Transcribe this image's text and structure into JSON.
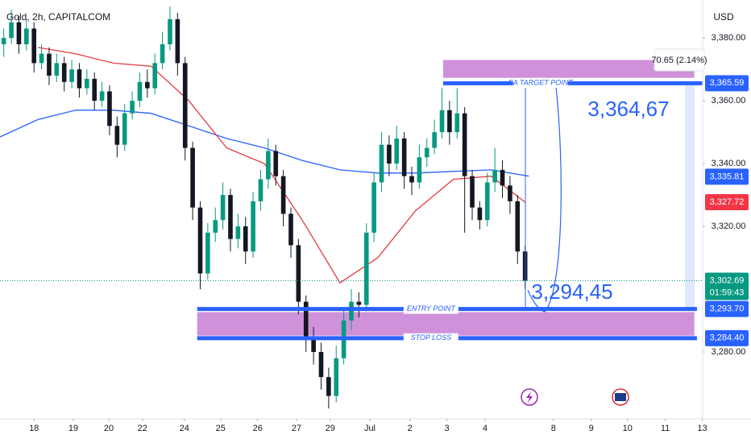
{
  "chart_data": {
    "type": "candlestick",
    "title": "Gold, 2h, CAPITALCOM",
    "currency": "USD",
    "up_color": "#089981",
    "down_color": "#131722",
    "xlim": [
      0,
      186
    ],
    "ylim": [
      3258.7,
      3392.1
    ],
    "xticks": [
      {
        "value": 9,
        "label": "18"
      },
      {
        "value": 19.4,
        "label": "19"
      },
      {
        "value": 28.8,
        "label": "20"
      },
      {
        "value": 37.7,
        "label": "22"
      },
      {
        "value": 48.8,
        "label": "24"
      },
      {
        "value": 58.4,
        "label": "25"
      },
      {
        "value": 68.2,
        "label": "26"
      },
      {
        "value": 78.5,
        "label": "27"
      },
      {
        "value": 87.4,
        "label": "29"
      },
      {
        "value": 97.9,
        "label": "Jul"
      },
      {
        "value": 108.5,
        "label": "2"
      },
      {
        "value": 118.3,
        "label": "3"
      },
      {
        "value": 128.4,
        "label": "4"
      },
      {
        "value": 146.5,
        "label": "8"
      },
      {
        "value": 156.5,
        "label": "9"
      },
      {
        "value": 166.1,
        "label": "10"
      },
      {
        "value": 176.1,
        "label": "11"
      },
      {
        "value": 185.9,
        "label": "13"
      }
    ],
    "yticks": [
      {
        "value": 3380,
        "label": "3,380.00"
      },
      {
        "value": 3360,
        "label": "3,360.00"
      },
      {
        "value": 3340,
        "label": "3,340.00"
      },
      {
        "value": 3320,
        "label": "3,320.00"
      },
      {
        "value": 3280,
        "label": "3,280.00"
      }
    ],
    "x": [
      1,
      3,
      5,
      7,
      9,
      11,
      13,
      15,
      17,
      19,
      21,
      23,
      25,
      27,
      29,
      31,
      33,
      35,
      37,
      39,
      41,
      43,
      45,
      47,
      49,
      51,
      53,
      55,
      57,
      59,
      61,
      63,
      65,
      67,
      69,
      71,
      73,
      75,
      77,
      79,
      81,
      83,
      85,
      87,
      89,
      91,
      93,
      95,
      97,
      99,
      101,
      103,
      105,
      107,
      109,
      111,
      113,
      115,
      117,
      119,
      121,
      123,
      125,
      127,
      129,
      131,
      133,
      135,
      137,
      139
    ],
    "candles": [
      [
        3378,
        3383,
        3374,
        3380
      ],
      [
        3380,
        3389,
        3378,
        3385
      ],
      [
        3385,
        3387,
        3375,
        3378
      ],
      [
        3378,
        3386,
        3376,
        3383
      ],
      [
        3383,
        3385,
        3369,
        3372
      ],
      [
        3372,
        3378,
        3370,
        3375
      ],
      [
        3375,
        3377,
        3365,
        3368
      ],
      [
        3368,
        3375,
        3366,
        3372
      ],
      [
        3372,
        3374,
        3363,
        3366
      ],
      [
        3366,
        3373,
        3364,
        3370
      ],
      [
        3370,
        3372,
        3361,
        3364
      ],
      [
        3364,
        3370,
        3362,
        3367
      ],
      [
        3367,
        3369,
        3357,
        3360
      ],
      [
        3360,
        3366,
        3358,
        3363
      ],
      [
        3363,
        3365,
        3349,
        3352
      ],
      [
        3352,
        3355,
        3342,
        3346
      ],
      [
        3346,
        3359,
        3344,
        3356
      ],
      [
        3356,
        3363,
        3354,
        3360
      ],
      [
        3360,
        3369,
        3358,
        3366
      ],
      [
        3366,
        3370,
        3361,
        3364
      ],
      [
        3364,
        3375,
        3362,
        3372
      ],
      [
        3372,
        3382,
        3370,
        3378
      ],
      [
        3378,
        3390,
        3376,
        3386
      ],
      [
        3386,
        3388,
        3368,
        3372
      ],
      [
        3372,
        3374,
        3341,
        3345
      ],
      [
        3345,
        3347,
        3322,
        3326
      ],
      [
        3326,
        3328,
        3300,
        3305
      ],
      [
        3305,
        3321,
        3303,
        3318
      ],
      [
        3318,
        3326,
        3315,
        3322
      ],
      [
        3322,
        3334,
        3319,
        3330
      ],
      [
        3330,
        3332,
        3312,
        3316
      ],
      [
        3316,
        3324,
        3313,
        3320
      ],
      [
        3320,
        3323,
        3308,
        3312
      ],
      [
        3312,
        3331,
        3310,
        3328
      ],
      [
        3328,
        3338,
        3325,
        3335
      ],
      [
        3335,
        3348,
        3332,
        3344
      ],
      [
        3344,
        3346,
        3333,
        3336
      ],
      [
        3336,
        3338,
        3320,
        3324
      ],
      [
        3324,
        3326,
        3310,
        3314
      ],
      [
        3314,
        3316,
        3292,
        3296
      ],
      [
        3296,
        3298,
        3280,
        3284
      ],
      [
        3284,
        3288,
        3276,
        3280
      ],
      [
        3280,
        3283,
        3268,
        3272
      ],
      [
        3272,
        3275,
        3262,
        3266
      ],
      [
        3266,
        3282,
        3264,
        3278
      ],
      [
        3278,
        3294,
        3276,
        3290
      ],
      [
        3290,
        3300,
        3287,
        3296
      ],
      [
        3296,
        3299,
        3291,
        3295
      ],
      [
        3295,
        3321,
        3293,
        3318
      ],
      [
        3318,
        3337,
        3315,
        3334
      ],
      [
        3334,
        3350,
        3331,
        3346
      ],
      [
        3346,
        3349,
        3336,
        3340
      ],
      [
        3340,
        3352,
        3338,
        3348
      ],
      [
        3348,
        3350,
        3332,
        3336
      ],
      [
        3336,
        3339,
        3330,
        3334
      ],
      [
        3334,
        3346,
        3332,
        3342
      ],
      [
        3342,
        3348,
        3339,
        3345
      ],
      [
        3345,
        3354,
        3343,
        3350
      ],
      [
        3350,
        3364,
        3348,
        3357
      ],
      [
        3357,
        3360,
        3346,
        3350
      ],
      [
        3350,
        3364,
        3348,
        3356
      ],
      [
        3356,
        3358,
        3318,
        3336
      ],
      [
        3336,
        3338,
        3322,
        3326
      ],
      [
        3326,
        3328,
        3319,
        3322
      ],
      [
        3322,
        3337,
        3320,
        3334
      ],
      [
        3334,
        3345,
        3331,
        3338
      ],
      [
        3338,
        3341,
        3329,
        3333
      ],
      [
        3333,
        3336,
        3324,
        3328
      ],
      [
        3328,
        3330,
        3308,
        3312
      ],
      [
        3312,
        3314,
        3300,
        3302.69
      ]
    ],
    "lines": [
      {
        "color": "#2962ff",
        "x": [
          0,
          10,
          20,
          30,
          40,
          50,
          60,
          70,
          80,
          90,
          100,
          110,
          120,
          130,
          140
        ],
        "values": [
          3348.5,
          3354,
          3357,
          3357,
          3356,
          3352,
          3348,
          3345,
          3341,
          3338,
          3337,
          3337,
          3337.5,
          3338,
          3336
        ]
      },
      {
        "color": "#e5393f",
        "x": [
          10,
          20,
          30,
          40,
          50,
          60,
          70,
          80,
          90,
          100,
          110,
          120,
          130,
          139
        ],
        "values": [
          3377,
          3375,
          3372,
          3371,
          3360,
          3345,
          3340,
          3322,
          3302,
          3310,
          3325,
          3335,
          3336,
          3327.7
        ]
      }
    ],
    "zones": [
      {
        "color": "#c77fd4",
        "top": 3373,
        "bottom": 3367.3,
        "x": [
          117.3,
          183.8
        ]
      },
      {
        "color": "#c77fd4",
        "top": 3292.7,
        "bottom": 3285.2,
        "x": [
          52.2,
          183.8
        ]
      }
    ],
    "levels": [
      {
        "label": "EA TARGET POINT",
        "value": 3365.59,
        "x": [
          117.3,
          185.9
        ]
      },
      {
        "label": "ENTRY POINT",
        "value": 3293.7,
        "x": [
          52.2,
          184.5
        ]
      },
      {
        "label": "STOP LOSS",
        "value": 3284.4,
        "x": [
          52.2,
          184.5
        ]
      }
    ],
    "price_tags": [
      {
        "value": 3365.59,
        "label": "3,365.59",
        "color": "#2962ff"
      },
      {
        "value": 3335.81,
        "label": "3,335.81",
        "color": "#2962ff"
      },
      {
        "value": 3327.72,
        "label": "3,327.72",
        "color": "#f23645"
      },
      {
        "value": 3302.69,
        "label": "3,302.69",
        "color": "#089981"
      },
      {
        "value": 3293.7,
        "label": "3,293.70",
        "color": "#2962ff"
      },
      {
        "value": 3284.4,
        "label": "3,284.40",
        "color": "#2962ff"
      }
    ],
    "countdown": "01:59:43",
    "measure_label": "70.65 (2.14%)",
    "annotations": [
      "3,364,67",
      "3,294,45"
    ]
  }
}
